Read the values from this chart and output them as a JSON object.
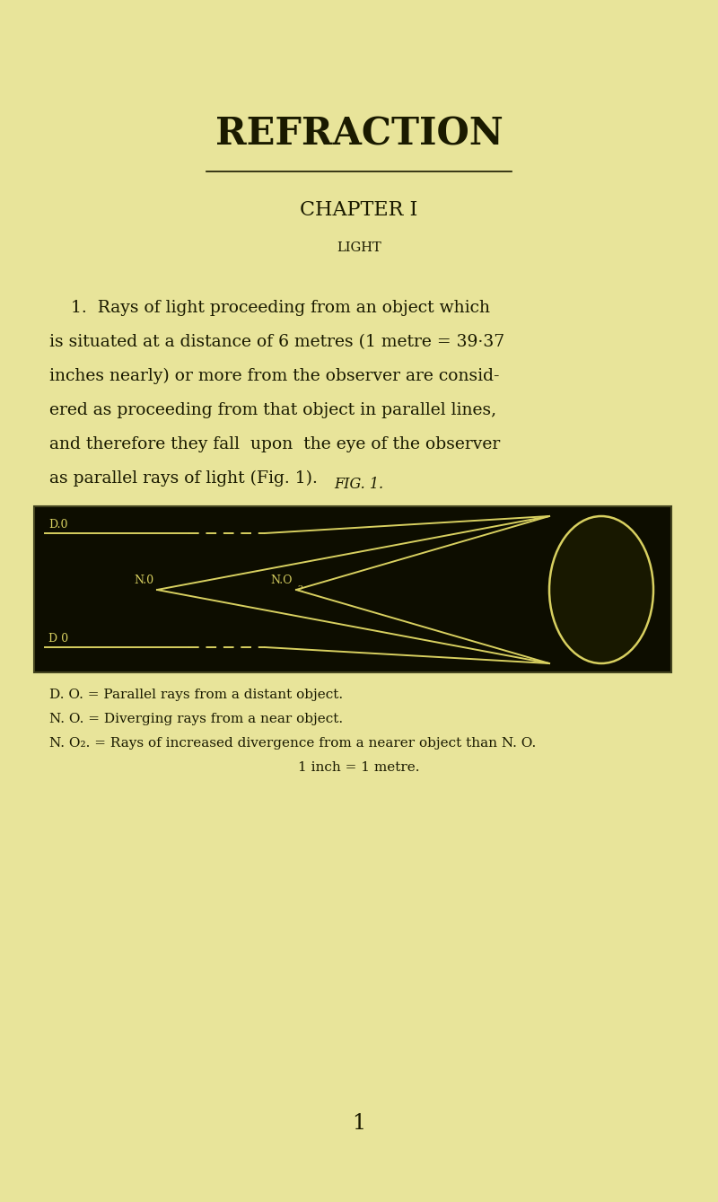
{
  "bg_color": "#e8e49a",
  "title": "REFRACTION",
  "chapter": "CHAPTER I",
  "section": "LIGHT",
  "fig_label": "FIG. 1.",
  "diagram_bg": "#0d0d00",
  "diagram_line_color": "#d8d060",
  "label_DO_top": "D.0",
  "label_NO": "N.0",
  "label_DO_bot": "D 0",
  "caption1": "D. O. = Parallel rays from a distant object.",
  "caption2": "N. O. = Diverging rays from a near object.",
  "caption3": "N. O₂. = Rays of increased divergence from a nearer object than N. O.",
  "caption4": "1 inch = 1 metre.",
  "page_num": "1",
  "para_lines": [
    "    1.  Rays of light proceeding from an object which",
    "is situated at a distance of 6 metres (1 metre = 39·37",
    "inches nearly) or more from the observer are consid-",
    "ered as proceeding from that object in parallel lines,",
    "and therefore they fall  upon  the eye of the observer",
    "as parallel rays of light (Fig. 1)."
  ]
}
